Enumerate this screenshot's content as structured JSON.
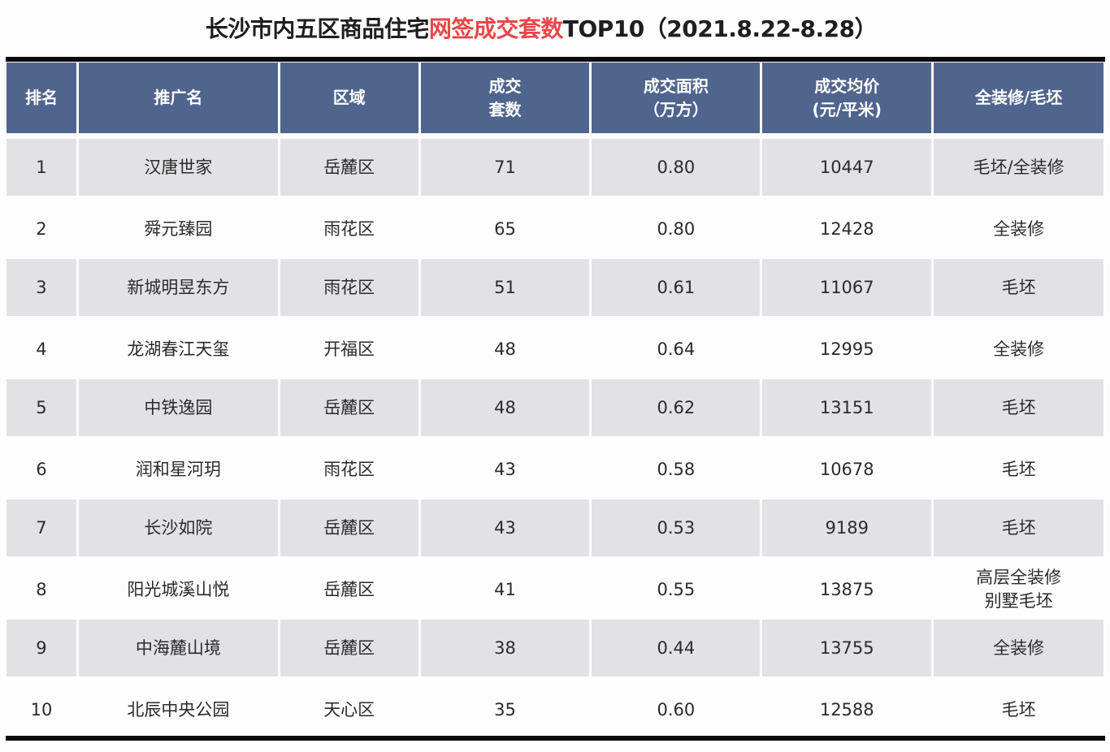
{
  "title": {
    "prefix": "长沙市内五区商品住宅",
    "highlight": "网签成交套数",
    "suffix": "TOP10（2021.8.22-8.28）",
    "highlight_color": "#e8474a"
  },
  "colors": {
    "header_bg": "#4f658d",
    "stripe_bg": "#e2e1e5",
    "rule": "#0c0c0c"
  },
  "table": {
    "headers": [
      "排名",
      "推广名",
      "区域",
      "成交\n套数",
      "成交面积\n（万方）",
      "成交均价\n(元/平米)",
      "全装修/毛坯"
    ],
    "rows": [
      [
        "1",
        "汉唐世家",
        "岳麓区",
        "71",
        "0.80",
        "10447",
        "毛坯/全装修"
      ],
      [
        "2",
        "舜元臻园",
        "雨花区",
        "65",
        "0.80",
        "12428",
        "全装修"
      ],
      [
        "3",
        "新城明昱东方",
        "雨花区",
        "51",
        "0.61",
        "11067",
        "毛坯"
      ],
      [
        "4",
        "龙湖春江天玺",
        "开福区",
        "48",
        "0.64",
        "12995",
        "全装修"
      ],
      [
        "5",
        "中铁逸园",
        "岳麓区",
        "48",
        "0.62",
        "13151",
        "毛坯"
      ],
      [
        "6",
        "润和星河玥",
        "雨花区",
        "43",
        "0.58",
        "10678",
        "毛坯"
      ],
      [
        "7",
        "长沙如院",
        "岳麓区",
        "43",
        "0.53",
        "9189",
        "毛坯"
      ],
      [
        "8",
        "阳光城溪山悦",
        "岳麓区",
        "41",
        "0.55",
        "13875",
        "高层全装修\n别墅毛坯"
      ],
      [
        "9",
        "中海麓山境",
        "岳麓区",
        "38",
        "0.44",
        "13755",
        "全装修"
      ],
      [
        "10",
        "北辰中央公园",
        "天心区",
        "35",
        "0.60",
        "12588",
        "毛坯"
      ]
    ]
  }
}
